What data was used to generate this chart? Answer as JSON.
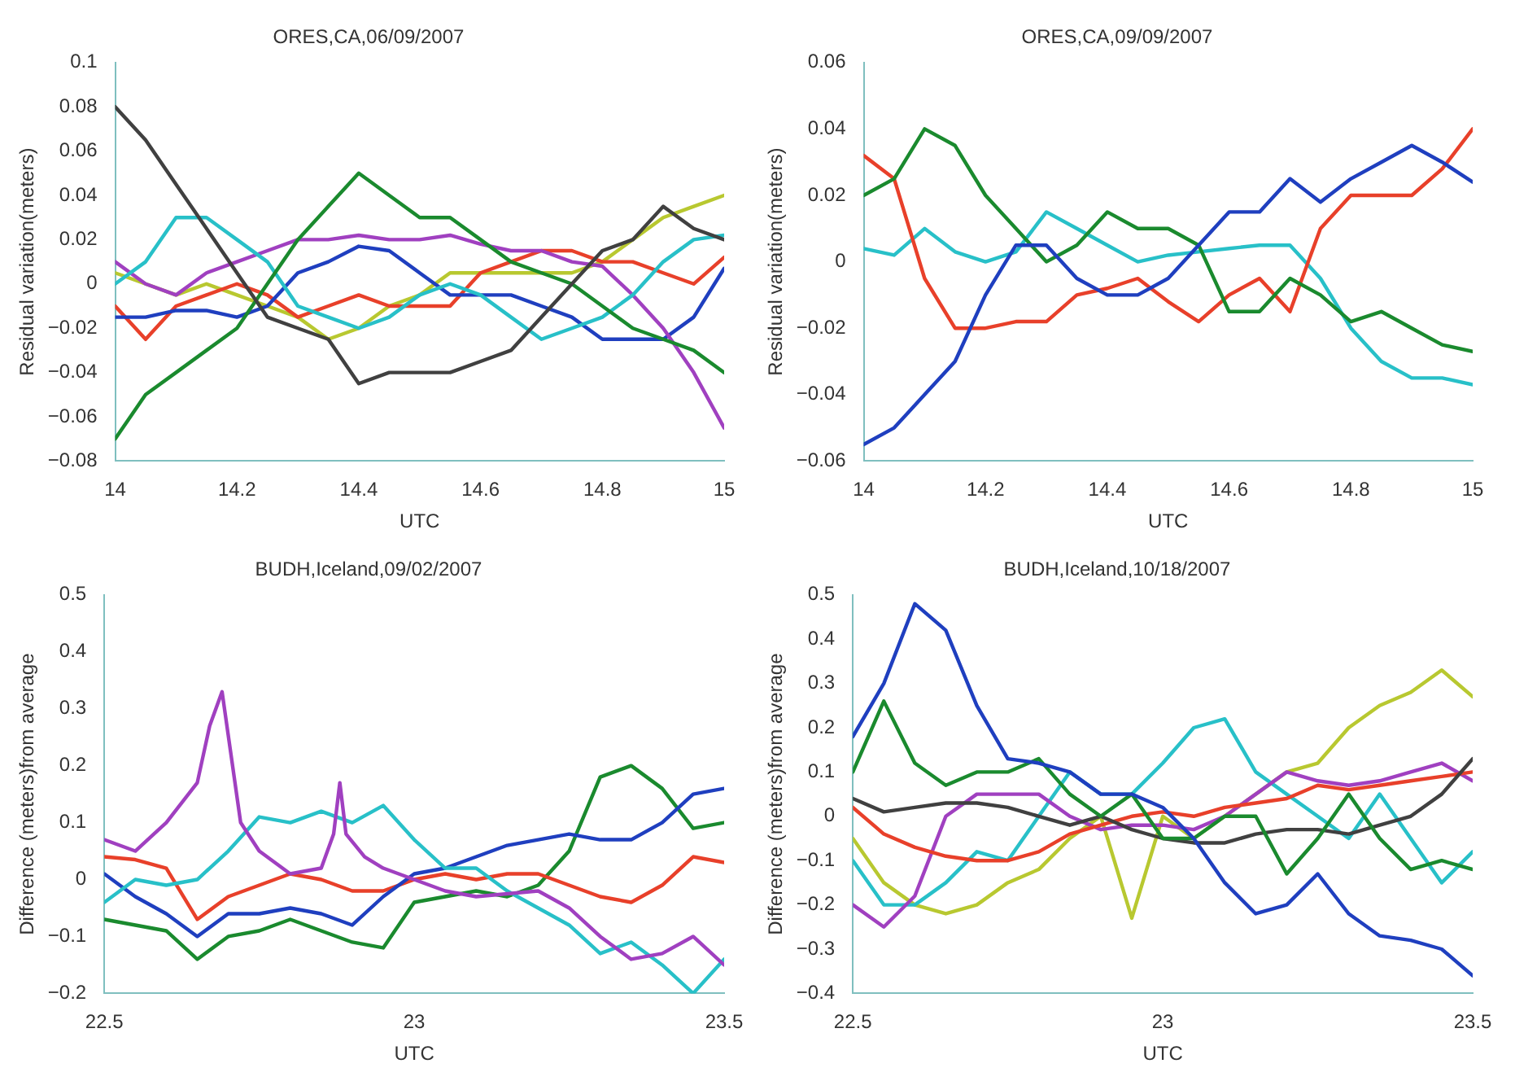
{
  "chart_data": [
    {
      "type": "line",
      "title": "ORES,CA,06/09/2007",
      "xlabel": "UTC",
      "ylabel": "Residual variation(meters)",
      "x": [
        14,
        14.05,
        14.1,
        14.15,
        14.2,
        14.25,
        14.3,
        14.35,
        14.4,
        14.45,
        14.5,
        14.55,
        14.6,
        14.65,
        14.7,
        14.75,
        14.8,
        14.85,
        14.9,
        14.95,
        15
      ],
      "xlim": [
        14,
        15
      ],
      "xticks": [
        14,
        14.2,
        14.4,
        14.6,
        14.8,
        15
      ],
      "ylim": [
        -0.08,
        0.1
      ],
      "yticks": [
        -0.08,
        -0.06,
        -0.04,
        -0.02,
        0,
        0.02,
        0.04,
        0.06,
        0.08,
        0.1
      ],
      "grid": false,
      "legend": false,
      "series": [
        {
          "color": "#404040",
          "values": [
            0.08,
            0.065,
            0.045,
            0.025,
            0.005,
            -0.015,
            -0.02,
            -0.025,
            -0.045,
            -0.04,
            -0.04,
            -0.04,
            -0.035,
            -0.03,
            -0.015,
            0,
            0.015,
            0.02,
            0.035,
            0.025,
            0.02
          ]
        },
        {
          "color": "#1a8a2e",
          "values": [
            -0.07,
            -0.05,
            -0.04,
            -0.03,
            -0.02,
            0,
            0.02,
            0.035,
            0.05,
            0.04,
            0.03,
            0.03,
            0.02,
            0.01,
            0.005,
            0,
            -0.01,
            -0.02,
            -0.025,
            -0.03,
            -0.04
          ]
        },
        {
          "color": "#28c0c8",
          "values": [
            0,
            0.01,
            0.03,
            0.03,
            0.02,
            0.01,
            -0.01,
            -0.015,
            -0.02,
            -0.015,
            -0.005,
            0,
            -0.005,
            -0.015,
            -0.025,
            -0.02,
            -0.015,
            -0.005,
            0.01,
            0.02,
            0.022
          ]
        },
        {
          "color": "#a040c0",
          "values": [
            0.01,
            0,
            -0.005,
            0.005,
            0.01,
            0.015,
            0.02,
            0.02,
            0.022,
            0.02,
            0.02,
            0.022,
            0.018,
            0.015,
            0.015,
            0.01,
            0.008,
            -0.005,
            -0.02,
            -0.04,
            -0.065
          ]
        },
        {
          "color": "#1f3fbf",
          "values": [
            -0.015,
            -0.015,
            -0.012,
            -0.012,
            -0.015,
            -0.01,
            0.005,
            0.01,
            0.017,
            0.015,
            0.005,
            -0.005,
            -0.005,
            -0.005,
            -0.01,
            -0.015,
            -0.025,
            -0.025,
            -0.025,
            -0.015,
            0.007
          ]
        },
        {
          "color": "#e8402a",
          "values": [
            -0.01,
            -0.025,
            -0.01,
            -0.005,
            0,
            -0.005,
            -0.015,
            -0.01,
            -0.005,
            -0.01,
            -0.01,
            -0.01,
            0.005,
            0.01,
            0.015,
            0.015,
            0.01,
            0.01,
            0.005,
            0,
            0.012
          ]
        },
        {
          "color": "#b8c830",
          "values": [
            0.005,
            0,
            -0.005,
            0,
            -0.005,
            -0.01,
            -0.015,
            -0.025,
            -0.02,
            -0.01,
            -0.005,
            0.005,
            0.005,
            0.005,
            0.005,
            0.005,
            0.01,
            0.02,
            0.03,
            0.035,
            0.04
          ]
        }
      ]
    },
    {
      "type": "line",
      "title": "ORES,CA,09/09/2007",
      "xlabel": "UTC",
      "ylabel": "Residual variation(meters)",
      "x": [
        14,
        14.05,
        14.1,
        14.15,
        14.2,
        14.25,
        14.3,
        14.35,
        14.4,
        14.45,
        14.5,
        14.55,
        14.6,
        14.65,
        14.7,
        14.75,
        14.8,
        14.85,
        14.9,
        14.95,
        15
      ],
      "xlim": [
        14,
        15
      ],
      "xticks": [
        14,
        14.2,
        14.4,
        14.6,
        14.8,
        15
      ],
      "ylim": [
        -0.06,
        0.06
      ],
      "yticks": [
        -0.06,
        -0.04,
        -0.02,
        0,
        0.02,
        0.04,
        0.06
      ],
      "grid": false,
      "legend": false,
      "series": [
        {
          "color": "#1f3fbf",
          "values": [
            -0.055,
            -0.05,
            -0.04,
            -0.03,
            -0.01,
            0.005,
            0.005,
            -0.005,
            -0.01,
            -0.01,
            -0.005,
            0.005,
            0.015,
            0.015,
            0.025,
            0.018,
            0.025,
            0.03,
            0.035,
            0.03,
            0.024
          ]
        },
        {
          "color": "#1a8a2e",
          "values": [
            0.02,
            0.025,
            0.04,
            0.035,
            0.02,
            0.01,
            0,
            0.005,
            0.015,
            0.01,
            0.01,
            0.005,
            -0.015,
            -0.015,
            -0.005,
            -0.01,
            -0.018,
            -0.015,
            -0.02,
            -0.025,
            -0.027
          ]
        },
        {
          "color": "#e8402a",
          "values": [
            0.032,
            0.025,
            -0.005,
            -0.02,
            -0.02,
            -0.018,
            -0.018,
            -0.01,
            -0.008,
            -0.005,
            -0.012,
            -0.018,
            -0.01,
            -0.005,
            -0.015,
            0.01,
            0.02,
            0.02,
            0.02,
            0.028,
            0.04
          ]
        },
        {
          "color": "#28c0c8",
          "values": [
            0.004,
            0.002,
            0.01,
            0.003,
            0,
            0.003,
            0.015,
            0.01,
            0.005,
            0,
            0.002,
            0.003,
            0.004,
            0.005,
            0.005,
            -0.005,
            -0.02,
            -0.03,
            -0.035,
            -0.035,
            -0.037
          ]
        }
      ]
    },
    {
      "type": "line",
      "title": "BUDH,Iceland,09/02/2007",
      "xlabel": "UTC",
      "ylabel": "Difference (meters)from average",
      "x": [
        22.5,
        22.55,
        22.6,
        22.65,
        22.7,
        22.75,
        22.8,
        22.85,
        22.9,
        22.95,
        23,
        23.05,
        23.1,
        23.15,
        23.2,
        23.25,
        23.3,
        23.35,
        23.4,
        23.45,
        23.5
      ],
      "xlim": [
        22.5,
        23.5
      ],
      "xticks": [
        22.5,
        23,
        23.5
      ],
      "ylim": [
        -0.2,
        0.5
      ],
      "yticks": [
        -0.2,
        -0.1,
        0,
        0.1,
        0.2,
        0.3,
        0.4,
        0.5
      ],
      "grid": false,
      "legend": false,
      "series": [
        {
          "color": "#a040c0",
          "x": [
            22.5,
            22.55,
            22.6,
            22.65,
            22.67,
            22.69,
            22.72,
            22.75,
            22.8,
            22.85,
            22.87,
            22.88,
            22.89,
            22.92,
            22.95,
            23,
            23.05,
            23.1,
            23.15,
            23.2,
            23.25,
            23.3,
            23.35,
            23.4,
            23.45,
            23.5
          ],
          "values": [
            0.07,
            0.05,
            0.1,
            0.17,
            0.27,
            0.33,
            0.1,
            0.05,
            0.01,
            0.02,
            0.08,
            0.17,
            0.08,
            0.04,
            0.02,
            0,
            -0.02,
            -0.03,
            -0.025,
            -0.02,
            -0.05,
            -0.1,
            -0.14,
            -0.13,
            -0.1,
            -0.15
          ]
        },
        {
          "color": "#28c0c8",
          "values": [
            -0.04,
            0,
            -0.01,
            0,
            0.05,
            0.11,
            0.1,
            0.12,
            0.1,
            0.13,
            0.07,
            0.02,
            0.02,
            -0.02,
            -0.05,
            -0.08,
            -0.13,
            -0.11,
            -0.15,
            -0.2,
            -0.14
          ]
        },
        {
          "color": "#1f3fbf",
          "values": [
            0.01,
            -0.03,
            -0.06,
            -0.1,
            -0.06,
            -0.06,
            -0.05,
            -0.06,
            -0.08,
            -0.03,
            0.01,
            0.02,
            0.04,
            0.06,
            0.07,
            0.08,
            0.07,
            0.07,
            0.1,
            0.15,
            0.16
          ]
        },
        {
          "color": "#e8402a",
          "values": [
            0.04,
            0.035,
            0.02,
            -0.07,
            -0.03,
            -0.01,
            0.01,
            0,
            -0.02,
            -0.02,
            0,
            0.01,
            0,
            0.01,
            0.01,
            -0.01,
            -0.03,
            -0.04,
            -0.01,
            0.04,
            0.03
          ]
        },
        {
          "color": "#1a8a2e",
          "values": [
            -0.07,
            -0.08,
            -0.09,
            -0.14,
            -0.1,
            -0.09,
            -0.07,
            -0.09,
            -0.11,
            -0.12,
            -0.04,
            -0.03,
            -0.02,
            -0.03,
            -0.01,
            0.05,
            0.18,
            0.2,
            0.16,
            0.09,
            0.1
          ]
        }
      ]
    },
    {
      "type": "line",
      "title": "BUDH,Iceland,10/18/2007",
      "xlabel": "UTC",
      "ylabel": "Difference (meters)from average",
      "x": [
        22.5,
        22.55,
        22.6,
        22.65,
        22.7,
        22.75,
        22.8,
        22.85,
        22.9,
        22.95,
        23,
        23.05,
        23.1,
        23.15,
        23.2,
        23.25,
        23.3,
        23.35,
        23.4,
        23.45,
        23.5
      ],
      "xlim": [
        22.5,
        23.5
      ],
      "xticks": [
        22.5,
        23,
        23.5
      ],
      "ylim": [
        -0.4,
        0.5
      ],
      "yticks": [
        -0.4,
        -0.3,
        -0.2,
        -0.1,
        0,
        0.1,
        0.2,
        0.3,
        0.4,
        0.5
      ],
      "grid": false,
      "legend": false,
      "series": [
        {
          "color": "#1f3fbf",
          "values": [
            0.18,
            0.3,
            0.48,
            0.42,
            0.25,
            0.13,
            0.12,
            0.1,
            0.05,
            0.05,
            0.02,
            -0.05,
            -0.15,
            -0.22,
            -0.2,
            -0.13,
            -0.22,
            -0.27,
            -0.28,
            -0.3,
            -0.36
          ]
        },
        {
          "color": "#1a8a2e",
          "values": [
            0.1,
            0.26,
            0.12,
            0.07,
            0.1,
            0.1,
            0.13,
            0.05,
            0,
            0.05,
            -0.05,
            -0.05,
            0,
            0,
            -0.13,
            -0.05,
            0.05,
            -0.05,
            -0.12,
            -0.1,
            -0.12
          ]
        },
        {
          "color": "#404040",
          "values": [
            0.04,
            0.01,
            0.02,
            0.03,
            0.03,
            0.02,
            0,
            -0.02,
            0,
            -0.03,
            -0.05,
            -0.06,
            -0.06,
            -0.04,
            -0.03,
            -0.03,
            -0.04,
            -0.02,
            0,
            0.05,
            0.13
          ]
        },
        {
          "color": "#e8402a",
          "values": [
            0.02,
            -0.04,
            -0.07,
            -0.09,
            -0.1,
            -0.1,
            -0.08,
            -0.04,
            -0.02,
            0,
            0.01,
            0,
            0.02,
            0.03,
            0.04,
            0.07,
            0.06,
            0.07,
            0.08,
            0.09,
            0.1
          ]
        },
        {
          "color": "#a040c0",
          "values": [
            -0.2,
            -0.25,
            -0.18,
            0,
            0.05,
            0.05,
            0.05,
            0,
            -0.03,
            -0.02,
            -0.02,
            -0.03,
            0,
            0.05,
            0.1,
            0.08,
            0.07,
            0.08,
            0.1,
            0.12,
            0.08
          ]
        },
        {
          "color": "#28c0c8",
          "values": [
            -0.1,
            -0.2,
            -0.2,
            -0.15,
            -0.08,
            -0.1,
            0,
            0.1,
            0.05,
            0.05,
            0.12,
            0.2,
            0.22,
            0.1,
            0.05,
            0,
            -0.05,
            0.05,
            -0.05,
            -0.15,
            -0.08
          ]
        },
        {
          "color": "#b8c830",
          "values": [
            -0.05,
            -0.15,
            -0.2,
            -0.22,
            -0.2,
            -0.15,
            -0.12,
            -0.05,
            0,
            -0.23,
            0,
            -0.05,
            0,
            0.05,
            0.1,
            0.12,
            0.2,
            0.25,
            0.28,
            0.33,
            0.27
          ]
        }
      ]
    }
  ]
}
